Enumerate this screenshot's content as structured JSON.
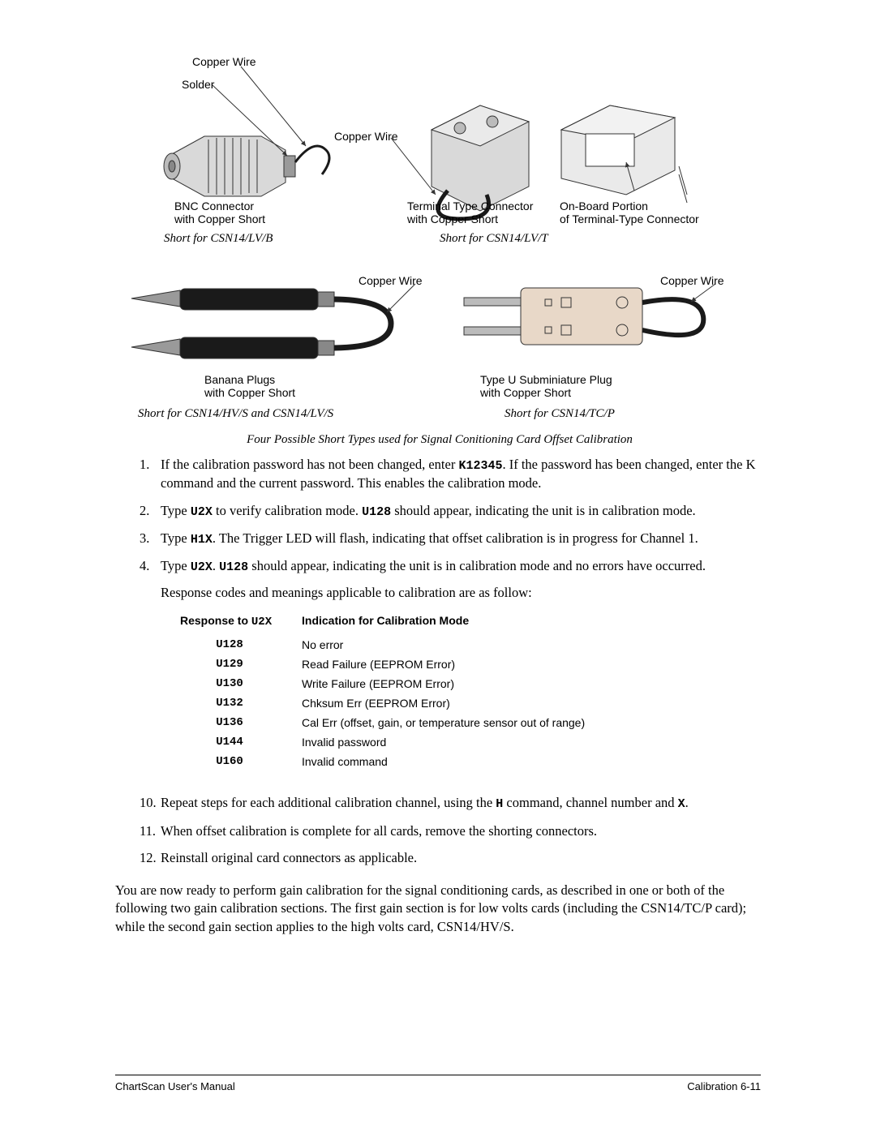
{
  "figure": {
    "labels": {
      "copper_wire_1": "Copper Wire",
      "solder": "Solder",
      "bnc_line1": "BNC Connector",
      "bnc_line2": "with Copper Short",
      "short_bnc": "Short for CSN14/LV/B",
      "copper_wire_2": "Copper Wire",
      "terminal_line1": "Terminal Type Connector",
      "terminal_line2": "with Copper Short",
      "onboard_line1": "On-Board Portion",
      "onboard_line2": "of Terminal-Type Connector",
      "short_terminal": "Short for CSN14/LV/T",
      "copper_wire_3": "Copper Wire",
      "banana_line1": "Banana  Plugs",
      "banana_line2": "with Copper Short",
      "short_banana": "Short for CSN14/HV/S and CSN14/LV/S",
      "copper_wire_4": "Copper Wire",
      "typeu_line1": "Type U Subminiature Plug",
      "typeu_line2": "with Copper Short",
      "short_typeu": "Short for CSN14/TC/P"
    },
    "caption": "Four Possible Short Types used for Signal Conitioning Card Offset Calibration",
    "colors": {
      "stroke": "#333333",
      "metal_light": "#d9d9d9",
      "metal_dark": "#9a9a9a",
      "black": "#1a1a1a",
      "copper": "#8a7a55",
      "green": "#4a7a4a"
    }
  },
  "steps_a": [
    {
      "n": "1.",
      "text_pre": "If the calibration password has not been changed,  enter ",
      "code": "K12345",
      "text_post": ". If the password has been changed, enter the K command and the current password.  This enables the calibration mode."
    },
    {
      "n": "2.",
      "text_pre": "Type ",
      "code": "U2X",
      "text_mid": " to verify calibration mode.  ",
      "code2": "U128",
      "text_post": " should appear, indicating the unit is in calibration mode."
    },
    {
      "n": "3.",
      "text_pre": "Type ",
      "code": "H1X",
      "text_post": ".  The Trigger LED will flash, indicating that offset calibration is in progress for Channel 1."
    },
    {
      "n": "4.",
      "text_pre": "Type ",
      "code": "U2X",
      "text_mid": ".  ",
      "code2": "U128",
      "text_post": " should appear, indicating the unit is in calibration mode and no errors have occurred."
    }
  ],
  "resp_intro": "Response codes and meanings applicable to calibration are as follow:",
  "resp_table": {
    "header_code_pre": "Response to ",
    "header_code": "U2X",
    "header_ind": "Indication for Calibration Mode",
    "rows": [
      {
        "code": "U128",
        "ind": "No error"
      },
      {
        "code": "U129",
        "ind": "Read Failure (EEPROM Error)"
      },
      {
        "code": "U130",
        "ind": "Write Failure (EEPROM Error)"
      },
      {
        "code": "U132",
        "ind": "Chksum Err (EEPROM Error)"
      },
      {
        "code": "U136",
        "ind": "Cal Err (offset, gain, or temperature sensor out of range)"
      },
      {
        "code": "U144",
        "ind": "Invalid password"
      },
      {
        "code": "U160",
        "ind": "Invalid command"
      }
    ]
  },
  "steps_b": [
    {
      "n": "10.",
      "text_pre": "Repeat steps for each additional calibration channel, using the ",
      "code": "H",
      "text_mid": " command, channel number and ",
      "code2": "X",
      "text_post": "."
    },
    {
      "n": "11.",
      "text": "When offset calibration is complete for all cards, remove the shorting connectors."
    },
    {
      "n": "12.",
      "text": "Reinstall original card connectors as applicable."
    }
  ],
  "closing": "You are now ready to perform gain calibration for the signal conditioning cards, as described in one or both of the following two gain calibration sections.  The first gain section is for low volts cards (including the CSN14/TC/P card); while the second gain section applies to the high volts card, CSN14/HV/S.",
  "footer": {
    "left": "ChartScan User's Manual",
    "right": "Calibration 6-11"
  }
}
